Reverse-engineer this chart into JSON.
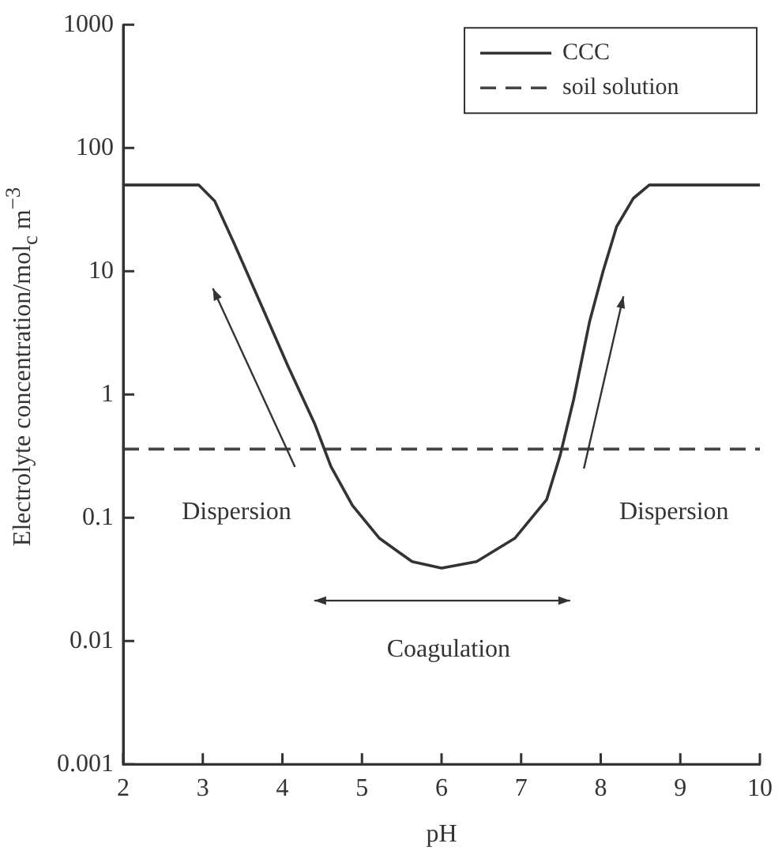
{
  "chart_data": {
    "type": "line",
    "xlabel": "pH",
    "ylabel": "Electrolyte concentration/mol$_{c}$ m$^{−3}$",
    "xlim": [
      2,
      10
    ],
    "xticks": [
      2,
      3,
      4,
      5,
      6,
      7,
      8,
      9,
      10
    ],
    "ylim": [
      0.001,
      1000
    ],
    "yticks": [
      0.001,
      0.01,
      0.1,
      1,
      10,
      100,
      1000
    ],
    "log": "y",
    "grid": false,
    "legend": "top right",
    "marker": "none",
    "series": [
      {
        "name": "CCC",
        "color": "#333333",
        "line_style": "solid",
        "x": [
          2,
          2.95,
          3.15,
          3.39,
          3.73,
          4.07,
          4.41,
          4.61,
          4.88,
          5.22,
          5.63,
          6.0,
          6.44,
          6.92,
          7.32,
          7.49,
          7.66,
          7.86,
          8.03,
          8.2,
          8.41,
          8.61,
          10
        ],
        "values": [
          50,
          50,
          37,
          17,
          5.4,
          1.7,
          0.57,
          0.26,
          0.126,
          0.068,
          0.044,
          0.039,
          0.044,
          0.068,
          0.14,
          0.32,
          0.91,
          3.9,
          10,
          23,
          39,
          50,
          50
        ]
      },
      {
        "name": "soil solution",
        "color": "#444444",
        "line_style": "dashed",
        "x": [
          2,
          10
        ],
        "values": [
          0.36,
          0.36
        ]
      }
    ],
    "annotations": [
      "Dispersion",
      "Dispersion",
      "Coagulation"
    ]
  }
}
